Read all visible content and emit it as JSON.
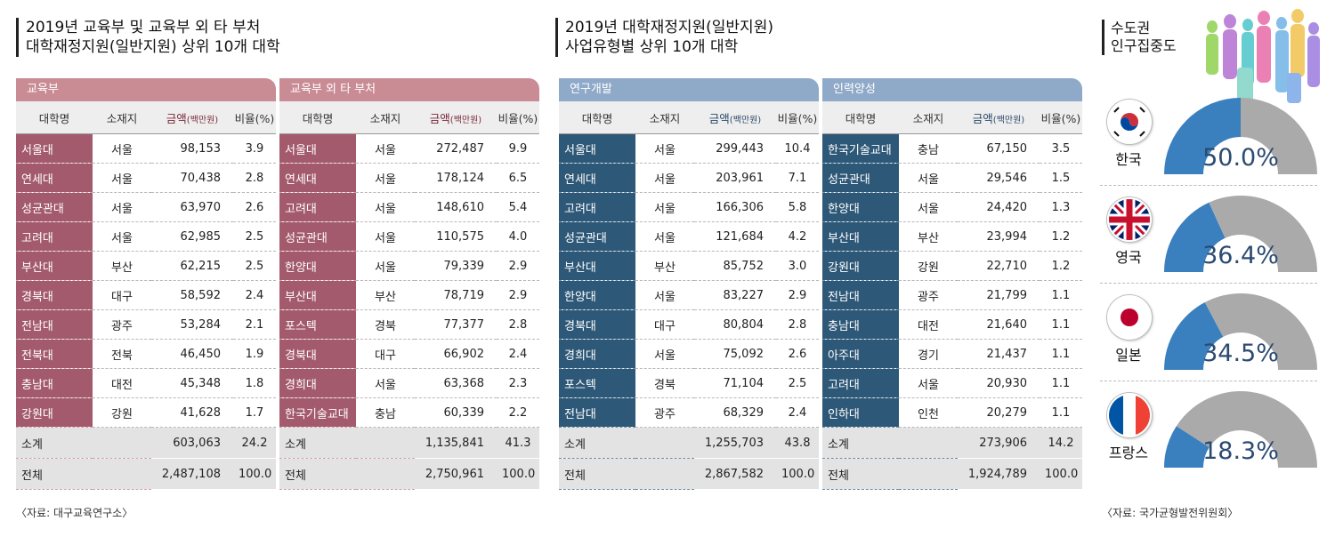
{
  "left": {
    "title_lines": [
      "2019년 교육부 및 교육부 외 타 부처",
      "대학재정지원(일반지원) 상위 10개 대학"
    ],
    "source": "〈자료: 대구교육연구소〉"
  },
  "middle": {
    "title_lines": [
      "2019년 대학재정지원(일반지원)",
      "사업유형별 상위 10개 대학"
    ]
  },
  "headers": {
    "name": "대학명",
    "region": "소재지",
    "amount": "금액",
    "amount_unit": "(백만원)",
    "ratio": "비율(%)"
  },
  "tables": [
    {
      "label": "교육부",
      "rows": [
        [
          "서울대",
          "서울",
          "98,153",
          "3.9"
        ],
        [
          "연세대",
          "서울",
          "70,438",
          "2.8"
        ],
        [
          "성균관대",
          "서울",
          "63,970",
          "2.6"
        ],
        [
          "고려대",
          "서울",
          "62,985",
          "2.5"
        ],
        [
          "부산대",
          "부산",
          "62,215",
          "2.5"
        ],
        [
          "경북대",
          "대구",
          "58,592",
          "2.4"
        ],
        [
          "전남대",
          "광주",
          "53,284",
          "2.1"
        ],
        [
          "전북대",
          "전북",
          "46,450",
          "1.9"
        ],
        [
          "충남대",
          "대전",
          "45,348",
          "1.8"
        ],
        [
          "강원대",
          "강원",
          "41,628",
          "1.7"
        ]
      ],
      "subtotal": [
        "소계",
        "603,063",
        "24.2"
      ],
      "total": [
        "전체",
        "2,487,108",
        "100.0"
      ]
    },
    {
      "label": "교육부 외 타 부처",
      "rows": [
        [
          "서울대",
          "서울",
          "272,487",
          "9.9"
        ],
        [
          "연세대",
          "서울",
          "178,124",
          "6.5"
        ],
        [
          "고려대",
          "서울",
          "148,610",
          "5.4"
        ],
        [
          "성균관대",
          "서울",
          "110,575",
          "4.0"
        ],
        [
          "한양대",
          "서울",
          "79,339",
          "2.9"
        ],
        [
          "부산대",
          "부산",
          "78,719",
          "2.9"
        ],
        [
          "포스텍",
          "경북",
          "77,377",
          "2.8"
        ],
        [
          "경북대",
          "대구",
          "66,902",
          "2.4"
        ],
        [
          "경희대",
          "서울",
          "63,368",
          "2.3"
        ],
        [
          "한국기술교대",
          "충남",
          "60,339",
          "2.2"
        ]
      ],
      "subtotal": [
        "소계",
        "1,135,841",
        "41.3"
      ],
      "total": [
        "전체",
        "2,750,961",
        "100.0"
      ]
    },
    {
      "label": "연구개발",
      "rows": [
        [
          "서울대",
          "서울",
          "299,443",
          "10.4"
        ],
        [
          "연세대",
          "서울",
          "203,961",
          "7.1"
        ],
        [
          "고려대",
          "서울",
          "166,306",
          "5.8"
        ],
        [
          "성균관대",
          "서울",
          "121,684",
          "4.2"
        ],
        [
          "부산대",
          "부산",
          "85,752",
          "3.0"
        ],
        [
          "한양대",
          "서울",
          "83,227",
          "2.9"
        ],
        [
          "경북대",
          "대구",
          "80,804",
          "2.8"
        ],
        [
          "경희대",
          "서울",
          "75,092",
          "2.6"
        ],
        [
          "포스텍",
          "경북",
          "71,104",
          "2.5"
        ],
        [
          "전남대",
          "광주",
          "68,329",
          "2.4"
        ]
      ],
      "subtotal": [
        "소계",
        "1,255,703",
        "43.8"
      ],
      "total": [
        "전체",
        "2,867,582",
        "100.0"
      ]
    },
    {
      "label": "인력양성",
      "rows": [
        [
          "한국기술교대",
          "충남",
          "67,150",
          "3.5"
        ],
        [
          "성균관대",
          "서울",
          "29,546",
          "1.5"
        ],
        [
          "한양대",
          "서울",
          "24,420",
          "1.3"
        ],
        [
          "부산대",
          "부산",
          "23,994",
          "1.2"
        ],
        [
          "강원대",
          "강원",
          "22,710",
          "1.2"
        ],
        [
          "전남대",
          "광주",
          "21,799",
          "1.1"
        ],
        [
          "충남대",
          "대전",
          "21,640",
          "1.1"
        ],
        [
          "아주대",
          "경기",
          "21,437",
          "1.1"
        ],
        [
          "고려대",
          "서울",
          "20,930",
          "1.1"
        ],
        [
          "인하대",
          "인천",
          "20,279",
          "1.1"
        ]
      ],
      "subtotal": [
        "소계",
        "273,906",
        "14.2"
      ],
      "total": [
        "전체",
        "1,924,789",
        "100.0"
      ]
    }
  ],
  "side": {
    "title_lines": [
      "수도권",
      "인구집중도"
    ],
    "source": "〈자료: 국가균형발전위원회〉",
    "countries": [
      {
        "name": "한국",
        "pct_label": "50.0%",
        "value": 50.0,
        "flag": "korea-flag-icon"
      },
      {
        "name": "영국",
        "pct_label": "36.4%",
        "value": 36.4,
        "flag": "uk-flag-icon"
      },
      {
        "name": "일본",
        "pct_label": "34.5%",
        "value": 34.5,
        "flag": "japan-flag-icon"
      },
      {
        "name": "프랑스",
        "pct_label": "18.3%",
        "value": 18.3,
        "flag": "france-flag-icon"
      }
    ]
  },
  "colors": {
    "red_tab": "#c98c95",
    "red_name": "#a35a6c",
    "blue_tab": "#8fa9c8",
    "blue_name": "#2e5877",
    "gauge_fill": "#3a80bf",
    "gauge_rest": "#aaaaaa"
  }
}
